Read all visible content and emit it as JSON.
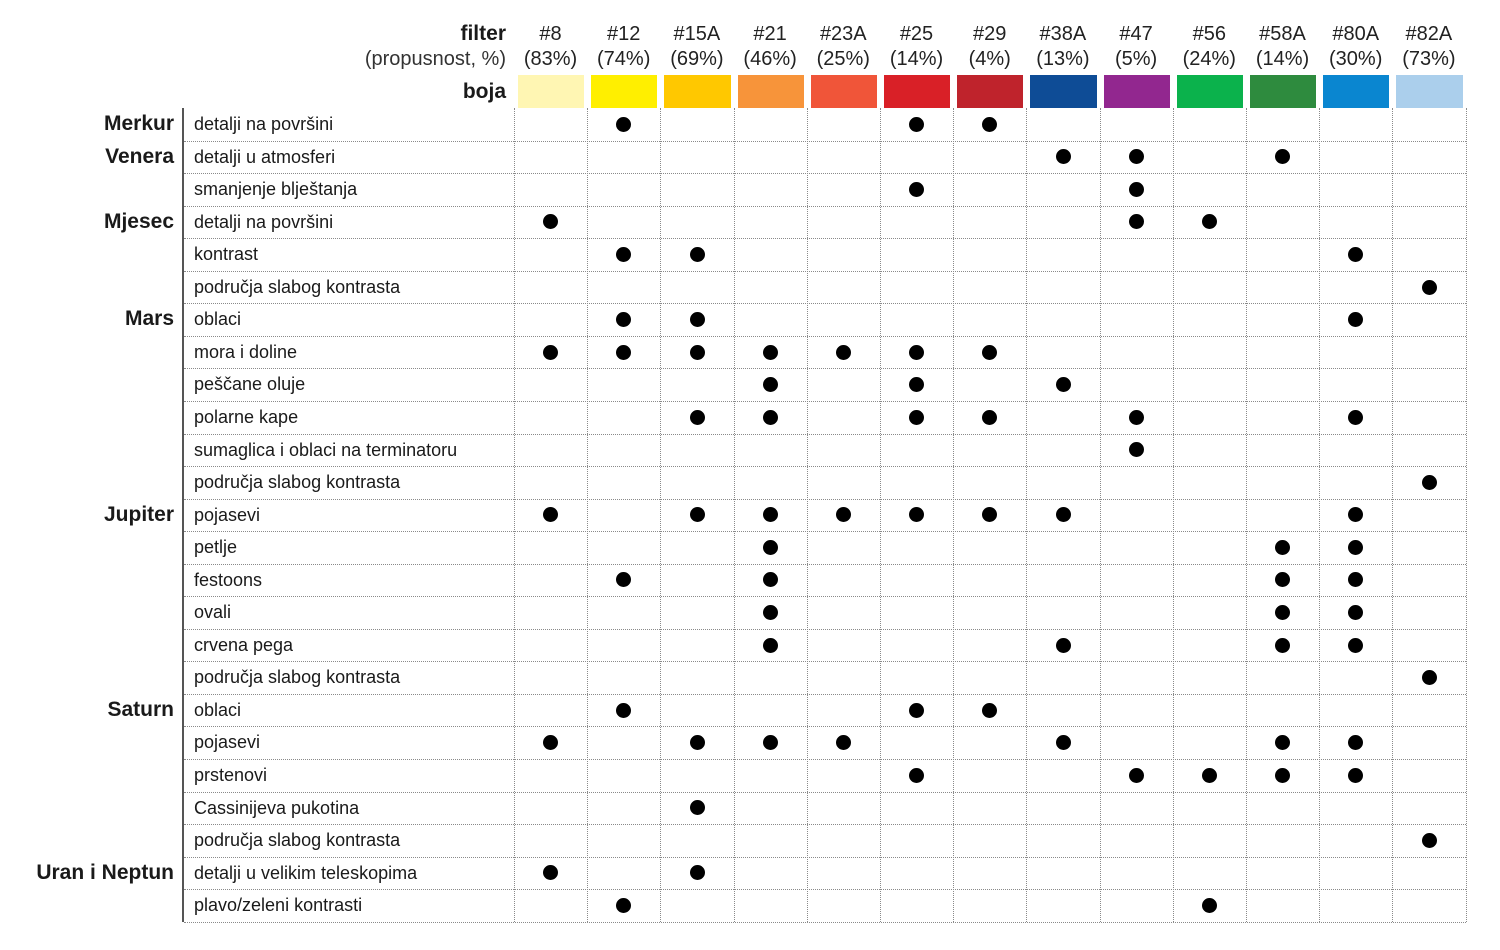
{
  "header": {
    "filter_label": "filter",
    "transmission_label": "(propusnost, %)",
    "color_label": "boja"
  },
  "chart_data": {
    "type": "table",
    "filters": [
      {
        "name": "#8",
        "transmission": "(83%)",
        "color": "#FFF6B3"
      },
      {
        "name": "#12",
        "transmission": "(74%)",
        "color": "#FFEF00"
      },
      {
        "name": "#15A",
        "transmission": "(69%)",
        "color": "#FFC800"
      },
      {
        "name": "#21",
        "transmission": "(46%)",
        "color": "#F7943A"
      },
      {
        "name": "#23A",
        "transmission": "(25%)",
        "color": "#F05539"
      },
      {
        "name": "#25",
        "transmission": "(14%)",
        "color": "#D92027"
      },
      {
        "name": "#29",
        "transmission": "(4%)",
        "color": "#BF232C"
      },
      {
        "name": "#38A",
        "transmission": "(13%)",
        "color": "#0E4C96"
      },
      {
        "name": "#47",
        "transmission": "(5%)",
        "color": "#92278F"
      },
      {
        "name": "#56",
        "transmission": "(24%)",
        "color": "#0BB24C"
      },
      {
        "name": "#58A",
        "transmission": "(14%)",
        "color": "#2E8B3E"
      },
      {
        "name": "#80A",
        "transmission": "(30%)",
        "color": "#0A86D0"
      },
      {
        "name": "#82A",
        "transmission": "(73%)",
        "color": "#ABCFEC"
      }
    ],
    "rows": [
      {
        "planet": "Merkur",
        "feature": "detalji na površini",
        "marks": [
          1,
          5,
          6
        ]
      },
      {
        "planet": "Venera",
        "feature": "detalji u atmosferi",
        "marks": [
          7,
          8,
          10
        ]
      },
      {
        "planet": "",
        "feature": "smanjenje blještanja",
        "marks": [
          5,
          8
        ]
      },
      {
        "planet": "Mjesec",
        "feature": "detalji na površini",
        "marks": [
          0,
          8,
          9
        ]
      },
      {
        "planet": "",
        "feature": "kontrast",
        "marks": [
          1,
          2,
          11
        ]
      },
      {
        "planet": "",
        "feature": "područja slabog kontrasta",
        "marks": [
          12
        ]
      },
      {
        "planet": "Mars",
        "feature": "oblaci",
        "marks": [
          1,
          2,
          11
        ]
      },
      {
        "planet": "",
        "feature": "mora i doline",
        "marks": [
          0,
          1,
          2,
          3,
          4,
          5,
          6
        ]
      },
      {
        "planet": "",
        "feature": "peščane oluje",
        "marks": [
          3,
          5,
          7
        ]
      },
      {
        "planet": "",
        "feature": "polarne kape",
        "marks": [
          2,
          3,
          5,
          6,
          8,
          11
        ]
      },
      {
        "planet": "",
        "feature": "sumaglica i oblaci na terminatoru",
        "marks": [
          8
        ]
      },
      {
        "planet": "",
        "feature": "područja slabog kontrasta",
        "marks": [
          12
        ]
      },
      {
        "planet": "Jupiter",
        "feature": "pojasevi",
        "marks": [
          0,
          2,
          3,
          4,
          5,
          6,
          7,
          11
        ]
      },
      {
        "planet": "",
        "feature": "petlje",
        "marks": [
          3,
          10,
          11
        ]
      },
      {
        "planet": "",
        "feature": "festoons",
        "marks": [
          1,
          3,
          10,
          11
        ]
      },
      {
        "planet": "",
        "feature": "ovali",
        "marks": [
          3,
          10,
          11
        ]
      },
      {
        "planet": "",
        "feature": "crvena pega",
        "marks": [
          3,
          7,
          10,
          11
        ]
      },
      {
        "planet": "",
        "feature": "područja slabog kontrasta",
        "marks": [
          12
        ]
      },
      {
        "planet": "Saturn",
        "feature": "oblaci",
        "marks": [
          1,
          5,
          6
        ]
      },
      {
        "planet": "",
        "feature": "pojasevi",
        "marks": [
          0,
          2,
          3,
          4,
          7,
          10,
          11
        ]
      },
      {
        "planet": "",
        "feature": "prstenovi",
        "marks": [
          5,
          8,
          9,
          10,
          11
        ]
      },
      {
        "planet": "",
        "feature": "Cassinijeva pukotina",
        "marks": [
          2
        ]
      },
      {
        "planet": "",
        "feature": "područja slabog kontrasta",
        "marks": [
          12
        ]
      },
      {
        "planet": "Uran i Neptun",
        "feature": "detalji u velikim teleskopima",
        "marks": [
          0,
          2
        ]
      },
      {
        "planet": "",
        "feature": "plavo/zeleni kontrasti",
        "marks": [
          1,
          9
        ]
      }
    ]
  }
}
